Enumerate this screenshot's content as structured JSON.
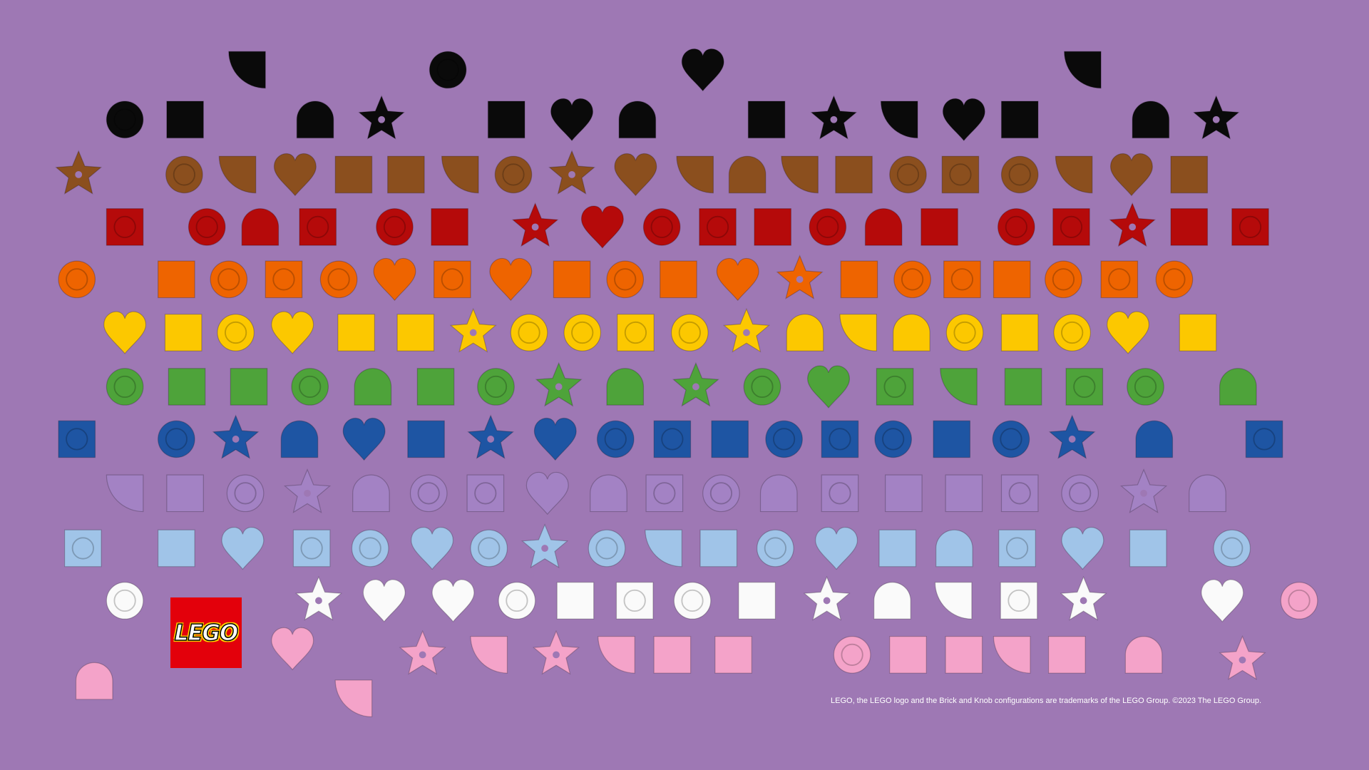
{
  "background": "#9e78b4",
  "rows": [
    {
      "color": "#0a0a0a",
      "pieces": [
        "quarter",
        "round",
        "heart",
        "quarter"
      ]
    },
    {
      "color": "#0a0a0a",
      "pieces": [
        "round",
        "square",
        "arch",
        "star",
        "square",
        "heart",
        "arch",
        "square",
        "star",
        "quarter",
        "heart",
        "square",
        "arch",
        "star"
      ]
    },
    {
      "color": "#8b4f1e",
      "pieces": [
        "star",
        "round",
        "quarter",
        "heart",
        "square",
        "square",
        "quarter",
        "round",
        "star",
        "heart",
        "quarter",
        "arch",
        "quarter",
        "square",
        "round",
        "square",
        "round",
        "quarter",
        "heart",
        "square"
      ]
    },
    {
      "color": "#b50a0a",
      "pieces": [
        "square",
        "round",
        "arch",
        "square",
        "round",
        "square",
        "star",
        "heart",
        "round",
        "square",
        "square",
        "round",
        "arch",
        "square",
        "round",
        "square",
        "star",
        "square",
        "square"
      ]
    },
    {
      "color": "#ee6400",
      "pieces": [
        "round",
        "square",
        "round",
        "square",
        "round",
        "heart",
        "square",
        "heart",
        "square",
        "round",
        "square",
        "heart",
        "star",
        "square",
        "round",
        "square",
        "square",
        "round",
        "square",
        "round"
      ]
    },
    {
      "color": "#fcc800",
      "pieces": [
        "heart",
        "square",
        "round",
        "heart",
        "square",
        "square",
        "star",
        "round",
        "round",
        "square",
        "round",
        "star",
        "arch",
        "quarter",
        "arch",
        "round",
        "square",
        "round",
        "heart",
        "square"
      ]
    },
    {
      "color": "#4ea33a",
      "pieces": [
        "round",
        "square",
        "square",
        "round",
        "arch",
        "square",
        "round",
        "star",
        "arch",
        "star",
        "round",
        "heart",
        "square",
        "quarter",
        "square",
        "square",
        "round",
        "arch"
      ]
    },
    {
      "color": "#1e55a3",
      "pieces": [
        "square",
        "round",
        "star",
        "arch",
        "heart",
        "square",
        "star",
        "heart",
        "round",
        "square",
        "square",
        "round",
        "square",
        "round",
        "square",
        "round",
        "star",
        "arch",
        "square"
      ]
    },
    {
      "color": "#a382c4",
      "pieces": [
        "quarter",
        "square",
        "round",
        "star",
        "arch",
        "round",
        "square",
        "heart",
        "arch",
        "square",
        "round",
        "arch",
        "square",
        "square",
        "square",
        "square",
        "round",
        "star",
        "arch"
      ]
    },
    {
      "color": "#a0c4e8",
      "pieces": [
        "square",
        "square",
        "heart",
        "square",
        "round",
        "heart",
        "round",
        "star",
        "round",
        "quarter",
        "square",
        "round",
        "heart",
        "square",
        "arch",
        "square",
        "heart",
        "square",
        "round"
      ]
    },
    {
      "color": "#fafafa",
      "pieces": [
        "round",
        "star",
        "heart",
        "heart",
        "round",
        "square",
        "square",
        "round",
        "square",
        "star",
        "arch",
        "quarter",
        "square",
        "star",
        "heart",
        "round"
      ]
    },
    {
      "color": "#f4a3c9",
      "pieces": [
        "arch",
        "heart",
        "quarter",
        "star",
        "quarter",
        "star",
        "quarter",
        "square",
        "square",
        "round",
        "square",
        "square",
        "quarter",
        "square",
        "arch",
        "star"
      ]
    }
  ],
  "logo": {
    "text": "LEGO",
    "color": "#e3000b"
  },
  "trademark": "LEGO, the LEGO logo and the Brick and Knob configurations are trademarks of the LEGO Group. ©2023 The LEGO Group."
}
